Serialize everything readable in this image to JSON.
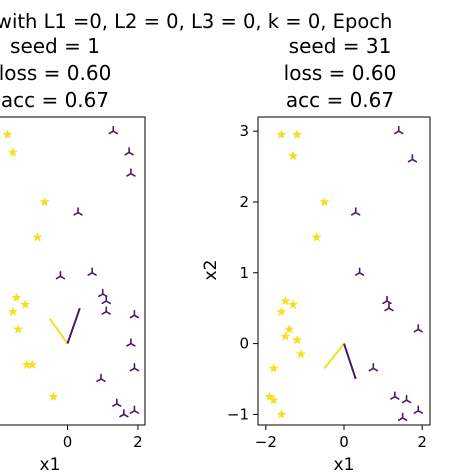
{
  "figure": {
    "suptitle": "with L1 =0, L2 = 0, L3 = 0, k = 0, Epoch"
  },
  "colors": {
    "class_star": "#f6df1f",
    "class_tri": "#461b67",
    "spine": "#000000"
  },
  "chart_data": [
    {
      "type": "scatter",
      "title_lines": [
        "seed = 1",
        "loss = 0.60",
        "acc = 0.67"
      ],
      "xlabel": "x1",
      "ylabel": "",
      "xlim": [
        -2.2,
        2.2
      ],
      "ylim": [
        -1.15,
        3.2
      ],
      "xticks": [
        0,
        2
      ],
      "xticklabels": [
        "0",
        "2"
      ],
      "yticks": [],
      "grid": false,
      "series": [
        {
          "marker": "star",
          "points": [
            [
              -1.7,
              2.95
            ],
            [
              -1.55,
              2.7
            ],
            [
              -0.65,
              2.0
            ],
            [
              -0.85,
              1.5
            ],
            [
              -1.45,
              0.65
            ],
            [
              -1.55,
              0.45
            ],
            [
              -1.2,
              0.55
            ],
            [
              -1.4,
              0.2
            ],
            [
              -1.0,
              -0.3
            ],
            [
              -1.15,
              -0.3
            ],
            [
              -0.4,
              -0.75
            ]
          ]
        },
        {
          "marker": "tri",
          "points": [
            [
              1.3,
              3.0
            ],
            [
              1.75,
              2.7
            ],
            [
              1.8,
              2.4
            ],
            [
              0.3,
              1.85
            ],
            [
              -0.2,
              0.95
            ],
            [
              0.7,
              1.0
            ],
            [
              1.0,
              0.7
            ],
            [
              1.1,
              0.6
            ],
            [
              1.1,
              0.45
            ],
            [
              1.9,
              0.4
            ],
            [
              1.8,
              0.0
            ],
            [
              1.9,
              -0.35
            ],
            [
              0.95,
              -0.5
            ],
            [
              1.4,
              -0.85
            ],
            [
              1.9,
              -0.95
            ],
            [
              1.6,
              -1.0
            ]
          ]
        }
      ],
      "boundary_segments": [
        {
          "from": [
            0.0,
            0.0
          ],
          "to": [
            -0.5,
            0.35
          ],
          "class": "star"
        },
        {
          "from": [
            0.0,
            0.0
          ],
          "to": [
            0.35,
            0.5
          ],
          "class": "tri"
        }
      ]
    },
    {
      "type": "scatter",
      "title_lines": [
        "seed = 31",
        "loss = 0.60",
        "acc = 0.67"
      ],
      "xlabel": "x1",
      "ylabel": "x2",
      "xlim": [
        -2.2,
        2.2
      ],
      "ylim": [
        -1.15,
        3.2
      ],
      "xticks": [
        -2,
        0,
        2
      ],
      "xticklabels": [
        "−2",
        "0",
        "2"
      ],
      "yticks": [
        -1,
        0,
        1,
        2,
        3
      ],
      "yticklabels": [
        "−1",
        "0",
        "1",
        "2",
        "3"
      ],
      "grid": false,
      "series": [
        {
          "marker": "star",
          "points": [
            [
              -1.6,
              2.95
            ],
            [
              -1.2,
              2.95
            ],
            [
              -1.3,
              2.65
            ],
            [
              -0.5,
              2.0
            ],
            [
              -0.7,
              1.5
            ],
            [
              -1.5,
              0.6
            ],
            [
              -1.3,
              0.55
            ],
            [
              -1.6,
              0.45
            ],
            [
              -1.4,
              0.2
            ],
            [
              -1.5,
              0.1
            ],
            [
              -1.2,
              0.05
            ],
            [
              -1.1,
              -0.15
            ],
            [
              -1.8,
              -0.35
            ],
            [
              -1.9,
              -0.75
            ],
            [
              -1.8,
              -0.8
            ],
            [
              -1.6,
              -1.0
            ]
          ]
        },
        {
          "marker": "tri",
          "points": [
            [
              1.4,
              3.0
            ],
            [
              1.75,
              2.6
            ],
            [
              0.3,
              1.85
            ],
            [
              0.4,
              1.0
            ],
            [
              1.1,
              0.6
            ],
            [
              1.15,
              0.5
            ],
            [
              1.9,
              0.2
            ],
            [
              0.75,
              -0.35
            ],
            [
              1.3,
              -0.75
            ],
            [
              1.6,
              -0.8
            ],
            [
              1.9,
              -0.95
            ],
            [
              1.5,
              -1.05
            ]
          ]
        }
      ],
      "boundary_segments": [
        {
          "from": [
            0.0,
            0.0
          ],
          "to": [
            -0.5,
            -0.35
          ],
          "class": "star"
        },
        {
          "from": [
            0.0,
            0.0
          ],
          "to": [
            0.3,
            -0.5
          ],
          "class": "tri"
        }
      ]
    }
  ]
}
